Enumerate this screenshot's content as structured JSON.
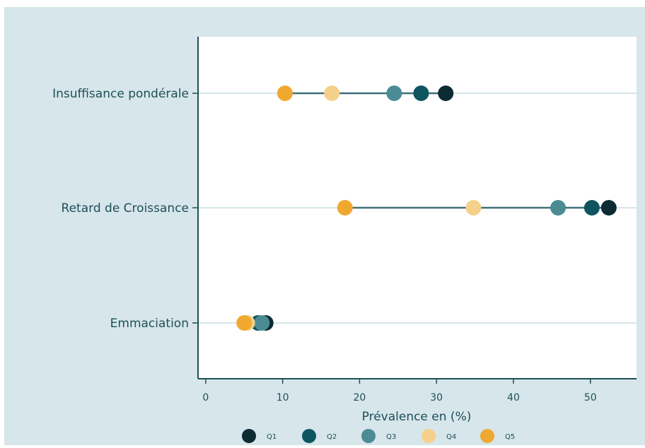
{
  "chart_data": {
    "type": "dumbbell",
    "xlabel": "Prévalence en (%)",
    "xlim": [
      -1,
      56
    ],
    "xticks": [
      0,
      10,
      20,
      30,
      40,
      50
    ],
    "xtick_labels": [
      "0",
      "10",
      "20",
      "30",
      "40",
      "50"
    ],
    "grid": "horizontal",
    "legend_position": "bottom",
    "categories": [
      "Insuffisance pondérale",
      "Retard de Croissance",
      "Emmaciation"
    ],
    "series": [
      {
        "name": "Q1",
        "color": "#0c2b33",
        "values": [
          31.2,
          52.4,
          7.8
        ]
      },
      {
        "name": "Q2",
        "color": "#0e5560",
        "values": [
          28.0,
          50.2,
          6.8
        ]
      },
      {
        "name": "Q3",
        "color": "#4b8c94",
        "values": [
          24.5,
          45.8,
          7.3
        ]
      },
      {
        "name": "Q4",
        "color": "#f5d08a",
        "values": [
          16.4,
          34.8,
          5.4
        ]
      },
      {
        "name": "Q5",
        "color": "#f0a830",
        "values": [
          10.3,
          18.1,
          5.0
        ]
      }
    ],
    "colors": {
      "background": "#d6e6ea",
      "plot_background": "#ffffff",
      "axis": "#1f4f57",
      "gridline": "#d6e6ea",
      "range_line": "#3c6f78",
      "text": "#1f4f57"
    }
  }
}
